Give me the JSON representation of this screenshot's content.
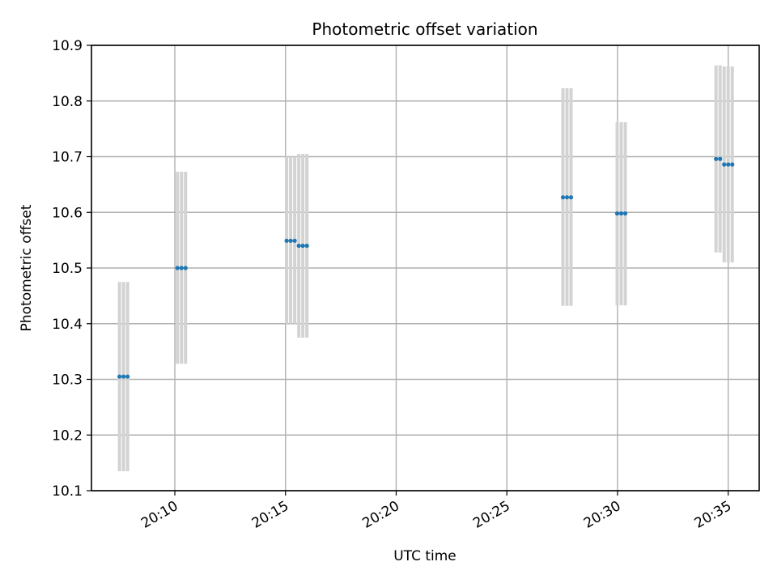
{
  "chart_data": {
    "type": "scatter",
    "title": "Photometric offset variation",
    "xlabel": "UTC time",
    "ylabel": "Photometric offset",
    "x_ticks": [
      "20:10",
      "20:15",
      "20:20",
      "20:25",
      "20:30",
      "20:35"
    ],
    "y_ticks": [
      "10.1",
      "10.2",
      "10.3",
      "10.4",
      "10.5",
      "10.6",
      "10.7",
      "10.8",
      "10.9"
    ],
    "xlim": [
      "20:06:14",
      "20:36:24"
    ],
    "ylim": [
      10.1,
      10.9
    ],
    "grid": true,
    "marker_color": "#1f77b4",
    "errorbar_color": "#d3d3d3",
    "points": [
      {
        "t": "20:07:30",
        "y": 10.305,
        "lo": 10.135,
        "hi": 10.475
      },
      {
        "t": "20:07:41",
        "y": 10.305,
        "lo": 10.135,
        "hi": 10.475
      },
      {
        "t": "20:07:52",
        "y": 10.305,
        "lo": 10.135,
        "hi": 10.475
      },
      {
        "t": "20:10:07",
        "y": 10.5,
        "lo": 10.328,
        "hi": 10.673
      },
      {
        "t": "20:10:18",
        "y": 10.5,
        "lo": 10.328,
        "hi": 10.673
      },
      {
        "t": "20:10:29",
        "y": 10.5,
        "lo": 10.328,
        "hi": 10.673
      },
      {
        "t": "20:15:03",
        "y": 10.549,
        "lo": 10.4,
        "hi": 10.7
      },
      {
        "t": "20:15:14",
        "y": 10.549,
        "lo": 10.4,
        "hi": 10.7
      },
      {
        "t": "20:15:25",
        "y": 10.549,
        "lo": 10.4,
        "hi": 10.7
      },
      {
        "t": "20:15:36",
        "y": 10.54,
        "lo": 10.375,
        "hi": 10.705
      },
      {
        "t": "20:15:47",
        "y": 10.54,
        "lo": 10.375,
        "hi": 10.705
      },
      {
        "t": "20:15:58",
        "y": 10.54,
        "lo": 10.375,
        "hi": 10.705
      },
      {
        "t": "20:27:32",
        "y": 10.627,
        "lo": 10.432,
        "hi": 10.823
      },
      {
        "t": "20:27:43",
        "y": 10.627,
        "lo": 10.432,
        "hi": 10.823
      },
      {
        "t": "20:27:54",
        "y": 10.627,
        "lo": 10.432,
        "hi": 10.823
      },
      {
        "t": "20:29:59",
        "y": 10.598,
        "lo": 10.433,
        "hi": 10.762
      },
      {
        "t": "20:30:10",
        "y": 10.598,
        "lo": 10.433,
        "hi": 10.762
      },
      {
        "t": "20:30:21",
        "y": 10.598,
        "lo": 10.433,
        "hi": 10.762
      },
      {
        "t": "20:34:27",
        "y": 10.696,
        "lo": 10.528,
        "hi": 10.864
      },
      {
        "t": "20:34:38",
        "y": 10.696,
        "lo": 10.528,
        "hi": 10.864
      },
      {
        "t": "20:34:49",
        "y": 10.686,
        "lo": 10.51,
        "hi": 10.862
      },
      {
        "t": "20:35:00",
        "y": 10.686,
        "lo": 10.51,
        "hi": 10.862
      },
      {
        "t": "20:35:11",
        "y": 10.686,
        "lo": 10.51,
        "hi": 10.862
      }
    ]
  }
}
